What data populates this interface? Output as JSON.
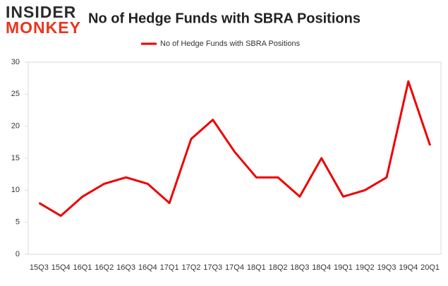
{
  "logo": {
    "line1": "INSIDER",
    "line2": "MONKEY"
  },
  "chart_data": {
    "type": "line",
    "title": "No of Hedge Funds with SBRA Positions",
    "categories": [
      "15Q3",
      "15Q4",
      "16Q1",
      "16Q2",
      "16Q3",
      "16Q4",
      "17Q1",
      "17Q2",
      "17Q3",
      "17Q4",
      "18Q1",
      "18Q2",
      "18Q3",
      "18Q4",
      "19Q1",
      "19Q2",
      "19Q3",
      "19Q4",
      "20Q1"
    ],
    "series": [
      {
        "name": "No of Hedge Funds with SBRA Positions",
        "color": "#ee0000",
        "values": [
          8,
          6,
          9,
          11,
          12,
          11,
          8,
          18,
          21,
          16,
          12,
          12,
          9,
          15,
          9,
          10,
          12,
          27,
          17
        ]
      }
    ],
    "ylim": [
      0,
      30
    ],
    "yticks": [
      0,
      5,
      10,
      15,
      20,
      25,
      30
    ],
    "grid": false,
    "legend": "top"
  }
}
